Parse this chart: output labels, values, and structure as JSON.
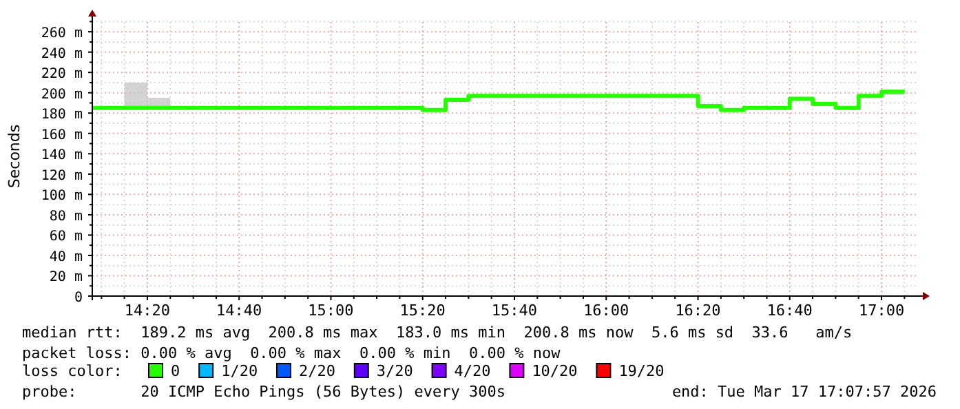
{
  "chart_data": {
    "type": "step",
    "ylabel": "Seconds",
    "legend_title": "loss color:",
    "legend": "bottom",
    "grid": true,
    "x": [
      "2026-03-17T14:08",
      "2026-03-17T14:15",
      "2026-03-17T14:20",
      "2026-03-17T14:25",
      "2026-03-17T15:20",
      "2026-03-17T15:25",
      "2026-03-17T15:30",
      "2026-03-17T16:20",
      "2026-03-17T16:25",
      "2026-03-17T16:30",
      "2026-03-17T16:40",
      "2026-03-17T16:45",
      "2026-03-17T16:50",
      "2026-03-17T16:55",
      "2026-03-17T17:00",
      "2026-03-17T17:05"
    ],
    "xlim": [
      "2026-03-17T14:08",
      "2026-03-17T17:09"
    ],
    "xticks": [
      {
        "value": "2026-03-17T14:10",
        "label": null
      },
      {
        "value": "2026-03-17T14:15",
        "label": null
      },
      {
        "value": "2026-03-17T14:20",
        "label": "14:20"
      },
      {
        "value": "2026-03-17T14:25",
        "label": null
      },
      {
        "value": "2026-03-17T14:30",
        "label": null
      },
      {
        "value": "2026-03-17T14:35",
        "label": null
      },
      {
        "value": "2026-03-17T14:40",
        "label": "14:40"
      },
      {
        "value": "2026-03-17T14:45",
        "label": null
      },
      {
        "value": "2026-03-17T14:50",
        "label": null
      },
      {
        "value": "2026-03-17T14:55",
        "label": null
      },
      {
        "value": "2026-03-17T15:00",
        "label": "15:00"
      },
      {
        "value": "2026-03-17T15:05",
        "label": null
      },
      {
        "value": "2026-03-17T15:10",
        "label": null
      },
      {
        "value": "2026-03-17T15:15",
        "label": null
      },
      {
        "value": "2026-03-17T15:20",
        "label": "15:20"
      },
      {
        "value": "2026-03-17T15:25",
        "label": null
      },
      {
        "value": "2026-03-17T15:30",
        "label": null
      },
      {
        "value": "2026-03-17T15:35",
        "label": null
      },
      {
        "value": "2026-03-17T15:40",
        "label": "15:40"
      },
      {
        "value": "2026-03-17T15:45",
        "label": null
      },
      {
        "value": "2026-03-17T15:50",
        "label": null
      },
      {
        "value": "2026-03-17T15:55",
        "label": null
      },
      {
        "value": "2026-03-17T16:00",
        "label": "16:00"
      },
      {
        "value": "2026-03-17T16:05",
        "label": null
      },
      {
        "value": "2026-03-17T16:10",
        "label": null
      },
      {
        "value": "2026-03-17T16:15",
        "label": null
      },
      {
        "value": "2026-03-17T16:20",
        "label": "16:20"
      },
      {
        "value": "2026-03-17T16:25",
        "label": null
      },
      {
        "value": "2026-03-17T16:30",
        "label": null
      },
      {
        "value": "2026-03-17T16:35",
        "label": null
      },
      {
        "value": "2026-03-17T16:40",
        "label": "16:40"
      },
      {
        "value": "2026-03-17T16:45",
        "label": null
      },
      {
        "value": "2026-03-17T16:50",
        "label": null
      },
      {
        "value": "2026-03-17T16:55",
        "label": null
      },
      {
        "value": "2026-03-17T17:00",
        "label": "17:00"
      },
      {
        "value": "2026-03-17T17:05",
        "label": null
      }
    ],
    "ylim": [
      0,
      275
    ],
    "yticks": [
      {
        "value": 0,
        "label": "0"
      },
      {
        "value": 10,
        "label": null
      },
      {
        "value": 20,
        "label": "20 m"
      },
      {
        "value": 30,
        "label": null
      },
      {
        "value": 40,
        "label": "40 m"
      },
      {
        "value": 50,
        "label": null
      },
      {
        "value": 60,
        "label": "60 m"
      },
      {
        "value": 70,
        "label": null
      },
      {
        "value": 80,
        "label": "80 m"
      },
      {
        "value": 90,
        "label": null
      },
      {
        "value": 100,
        "label": "100 m"
      },
      {
        "value": 110,
        "label": null
      },
      {
        "value": 120,
        "label": "120 m"
      },
      {
        "value": 130,
        "label": null
      },
      {
        "value": 140,
        "label": "140 m"
      },
      {
        "value": 150,
        "label": null
      },
      {
        "value": 160,
        "label": "160 m"
      },
      {
        "value": 170,
        "label": null
      },
      {
        "value": 180,
        "label": "180 m"
      },
      {
        "value": 190,
        "label": null
      },
      {
        "value": 200,
        "label": "200 m"
      },
      {
        "value": 210,
        "label": null
      },
      {
        "value": 220,
        "label": "220 m"
      },
      {
        "value": 230,
        "label": null
      },
      {
        "value": 240,
        "label": "240 m"
      },
      {
        "value": 250,
        "label": null
      },
      {
        "value": 260,
        "label": "260 m"
      },
      {
        "value": 270,
        "label": null
      }
    ],
    "series": [
      {
        "name": "0",
        "color": "#26ff00",
        "values": [
          185,
          185,
          185,
          185,
          183,
          193,
          197,
          187,
          183,
          185,
          194,
          189,
          185,
          197,
          201,
          201
        ],
        "lower": [
          null,
          185,
          185,
          185,
          null,
          null,
          null,
          null,
          null,
          null,
          null,
          null,
          null,
          null,
          198,
          201
        ],
        "upper": [
          null,
          210,
          195,
          185,
          null,
          null,
          null,
          null,
          null,
          null,
          null,
          null,
          null,
          null,
          201,
          201
        ]
      },
      {
        "name": "1/20",
        "color": "#00b8ff",
        "values": [
          null,
          null,
          null,
          null,
          null,
          null,
          null,
          null,
          null,
          null,
          null,
          null,
          null,
          null,
          null,
          null
        ]
      },
      {
        "name": "2/20",
        "color": "#0059ff",
        "values": [
          null,
          null,
          null,
          null,
          null,
          null,
          null,
          null,
          null,
          null,
          null,
          null,
          null,
          null,
          null,
          null
        ]
      },
      {
        "name": "3/20",
        "color": "#5e00ff",
        "values": [
          null,
          null,
          null,
          null,
          null,
          null,
          null,
          null,
          null,
          null,
          null,
          null,
          null,
          null,
          null,
          null
        ]
      },
      {
        "name": "4/20",
        "color": "#7e00ff",
        "values": [
          null,
          null,
          null,
          null,
          null,
          null,
          null,
          null,
          null,
          null,
          null,
          null,
          null,
          null,
          null,
          null
        ]
      },
      {
        "name": "10/20",
        "color": "#dd00ff",
        "values": [
          null,
          null,
          null,
          null,
          null,
          null,
          null,
          null,
          null,
          null,
          null,
          null,
          null,
          null,
          null,
          null
        ]
      },
      {
        "name": "19/20",
        "color": "#ff0000",
        "values": [
          null,
          null,
          null,
          null,
          null,
          null,
          null,
          null,
          null,
          null,
          null,
          null,
          null,
          null,
          null,
          null
        ]
      }
    ],
    "annotations": [
      "median rtt:  189.2 ms avg  200.8 ms max  183.0 ms min  200.8 ms now  5.6 ms sd  33.6   am/s",
      "packet loss: 0.00 % avg  0.00 % max  0.00 % min  0.00 % now",
      "probe:       20 ICMP Echo Pings (56 Bytes) every 300s",
      "end: Tue Mar 17 17:07:57 2026"
    ]
  }
}
